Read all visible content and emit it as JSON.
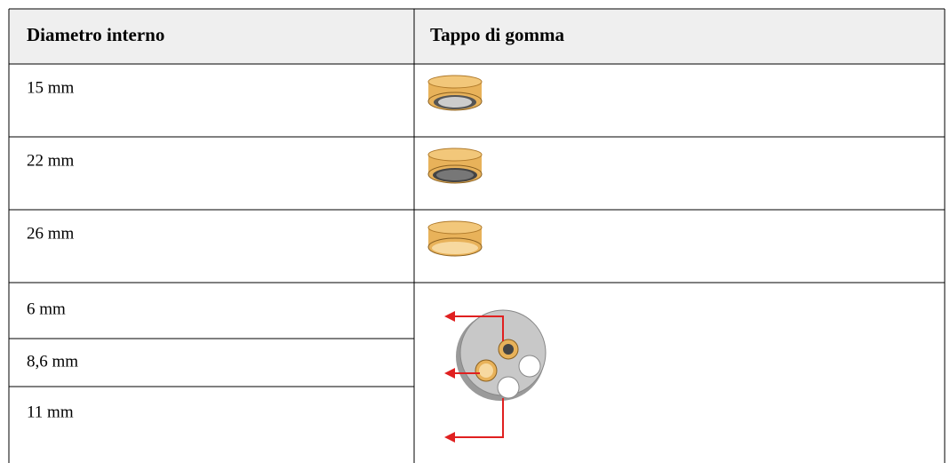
{
  "table": {
    "header": [
      "Diametro interno",
      "Tappo di gomma"
    ],
    "rows": [
      [
        "15 mm"
      ],
      [
        "22 mm"
      ],
      [
        "26 mm"
      ],
      [
        "6 mm"
      ],
      [
        "8,6 mm"
      ],
      [
        "11 mm"
      ]
    ]
  }
}
